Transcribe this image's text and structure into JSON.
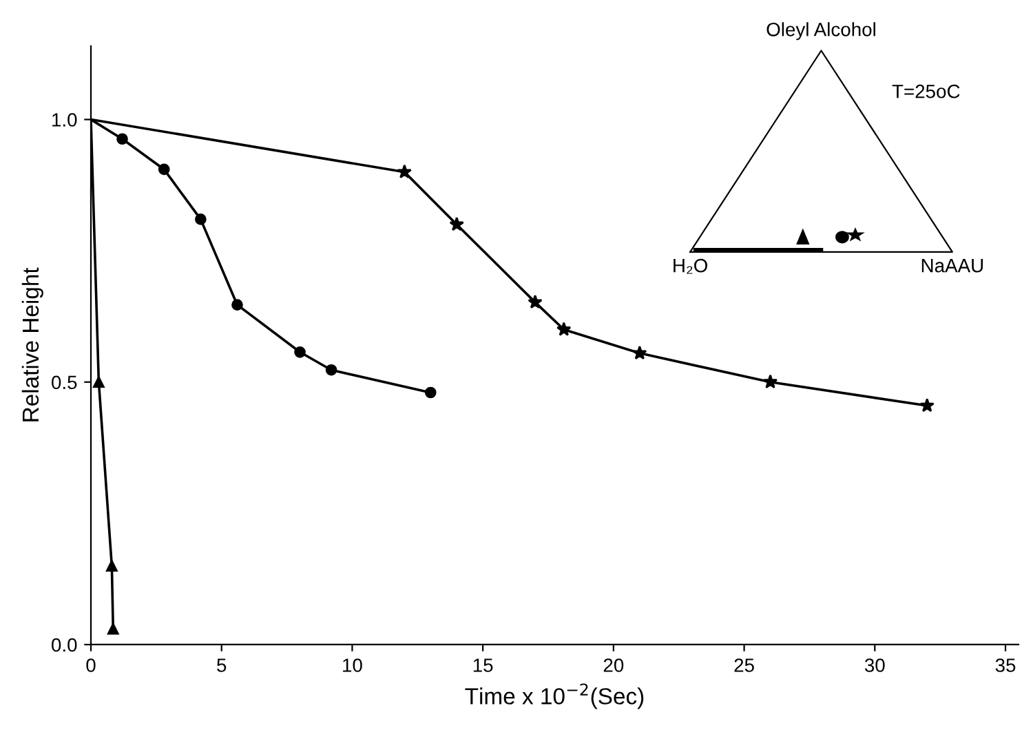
{
  "chart_data": {
    "type": "line",
    "xlabel": "Time x 10$^{−2}$(Sec)",
    "ylabel": "Relative Height",
    "xlim": [
      0,
      35.5
    ],
    "ylim": [
      0,
      1.14
    ],
    "xticks": [
      0,
      5,
      10,
      15,
      20,
      25,
      30,
      35
    ],
    "yticks": [
      {
        "value": 0,
        "label": "0.0"
      },
      {
        "value": 0.5,
        "label": "0.5"
      },
      {
        "value": 1.0,
        "label": "1.0"
      }
    ],
    "grid": false,
    "legend": false,
    "line_style": "solid",
    "series": [
      {
        "color": "#000000",
        "marker": "triangle",
        "x": [
          0,
          0.3,
          0.8,
          0.85
        ],
        "values": [
          1.0,
          0.5,
          0.15,
          0.03
        ]
      },
      {
        "color": "#000000",
        "marker": "circle",
        "x": [
          0,
          1.2,
          2.8,
          4.2,
          5.6,
          8.0,
          9.2,
          13.0
        ],
        "values": [
          1.0,
          0.963,
          0.905,
          0.81,
          0.647,
          0.557,
          0.523,
          0.48
        ]
      },
      {
        "color": "#000000",
        "marker": "star",
        "x": [
          0,
          12,
          14,
          17,
          18.1,
          21,
          26,
          32
        ],
        "values": [
          1.0,
          0.9,
          0.8,
          0.652,
          0.6,
          0.555,
          0.5,
          0.455
        ]
      }
    ],
    "annotations": [
      "Oleyl Alcohol",
      "T=25oC",
      "H₂O",
      "NaAAU"
    ]
  }
}
